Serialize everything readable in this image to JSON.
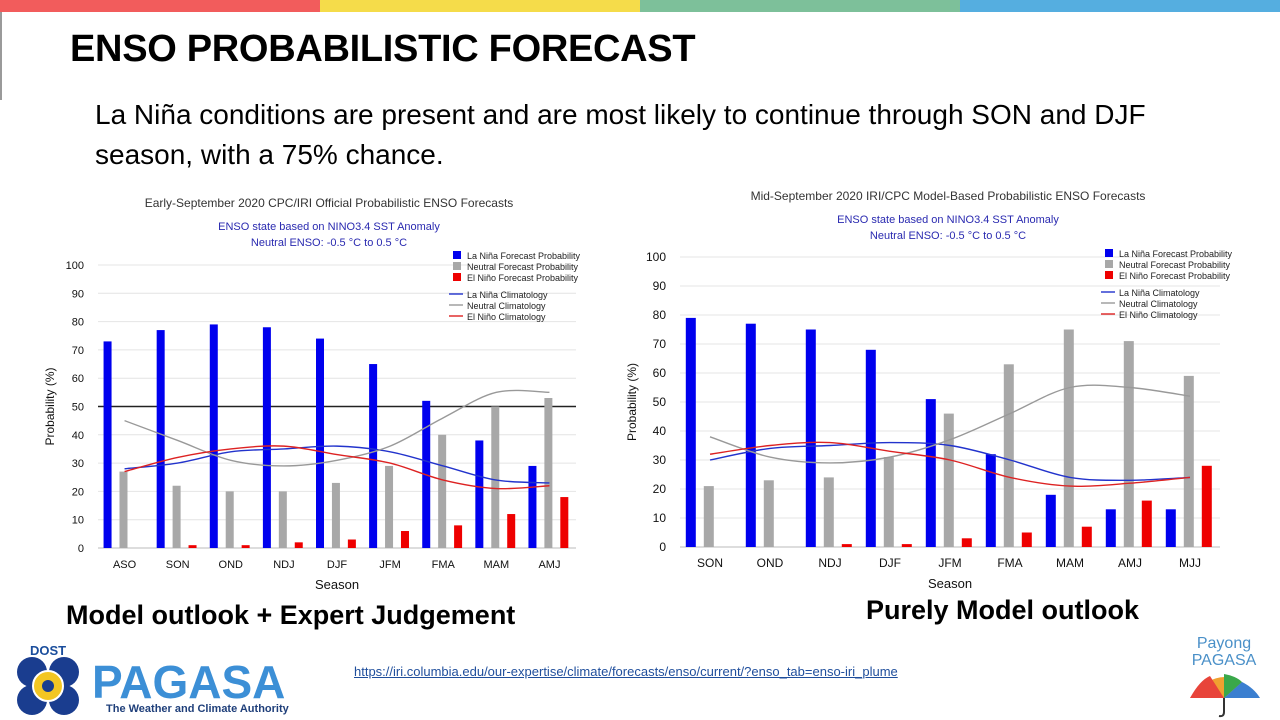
{
  "slide": {
    "title": "ENSO PROBABILISTIC FORECAST",
    "intro": "La Niña conditions are present and are most likely to continue through SON and DJF season, with a 75% chance.",
    "caption_left": "Model outlook + Expert Judgement",
    "caption_right": "Purely Model outlook",
    "source_link": "https://iri.columbia.edu/our-expertise/climate/forecasts/enso/current/?enso_tab=enso-iri_plume",
    "logo_left": {
      "top_text": "DOST",
      "name": "PAGASA",
      "tagline": "The Weather and Climate Authority"
    },
    "logo_right": {
      "line1": "Payong",
      "line2": "PAGASA"
    },
    "colors": {
      "bar_red": "#f25c5c",
      "bar_yellow": "#f5dc4a",
      "bar_green": "#7dc09a",
      "bar_blue": "#55aee0"
    }
  },
  "chart_data": [
    {
      "type": "bar",
      "title": "Early-September 2020 CPC/IRI Official Probabilistic ENSO Forecasts",
      "subtitle": [
        "ENSO state based on NINO3.4 SST Anomaly",
        "Neutral ENSO: -0.5 °C to 0.5 °C"
      ],
      "xlabel": "Season",
      "ylabel": "Probability (%)",
      "ylim": [
        0,
        100
      ],
      "yticks": [
        0,
        10,
        20,
        30,
        40,
        50,
        60,
        70,
        80,
        90,
        100
      ],
      "reference_line": 50,
      "grid": true,
      "legend_placement": "top-right",
      "categories": [
        "ASO",
        "SON",
        "OND",
        "NDJ",
        "DJF",
        "JFM",
        "FMA",
        "MAM",
        "AMJ"
      ],
      "series": [
        {
          "name": "La Niña Forecast Probability",
          "kind": "bar",
          "color": "#0000ee",
          "values": [
            73,
            77,
            79,
            78,
            74,
            65,
            52,
            38,
            29
          ]
        },
        {
          "name": "Neutral Forecast Probability",
          "kind": "bar",
          "color": "#a8a8a8",
          "values": [
            27,
            22,
            20,
            20,
            23,
            29,
            40,
            50,
            53
          ]
        },
        {
          "name": "El Niño Forecast Probability",
          "kind": "bar",
          "color": "#ee0000",
          "values": [
            0,
            1,
            1,
            2,
            3,
            6,
            8,
            12,
            18
          ]
        },
        {
          "name": "La Niña Climatology",
          "kind": "line",
          "color": "#2233cc",
          "values": [
            28,
            30,
            34,
            35,
            36,
            34,
            29,
            24,
            23
          ]
        },
        {
          "name": "Neutral Climatology",
          "kind": "line",
          "color": "#999999",
          "values": [
            45,
            38,
            31,
            29,
            31,
            36,
            46,
            55,
            55
          ]
        },
        {
          "name": "El Niño Climatology",
          "kind": "line",
          "color": "#dd2222",
          "values": [
            27,
            32,
            35,
            36,
            33,
            30,
            24,
            21,
            22
          ]
        }
      ]
    },
    {
      "type": "bar",
      "title": "Mid-September 2020 IRI/CPC Model-Based Probabilistic ENSO Forecasts",
      "subtitle": [
        "ENSO state based on NINO3.4 SST Anomaly",
        "Neutral ENSO: -0.5 °C to 0.5 °C"
      ],
      "xlabel": "Season",
      "ylabel": "Probability (%)",
      "ylim": [
        0,
        100
      ],
      "yticks": [
        0,
        10,
        20,
        30,
        40,
        50,
        60,
        70,
        80,
        90,
        100
      ],
      "grid": true,
      "legend_placement": "top-right",
      "categories": [
        "SON",
        "OND",
        "NDJ",
        "DJF",
        "JFM",
        "FMA",
        "MAM",
        "AMJ",
        "MJJ"
      ],
      "series": [
        {
          "name": "La Niña Forecast Probability",
          "kind": "bar",
          "color": "#0000ee",
          "values": [
            79,
            77,
            75,
            68,
            51,
            32,
            18,
            13,
            13
          ]
        },
        {
          "name": "Neutral Forecast Probability",
          "kind": "bar",
          "color": "#a8a8a8",
          "values": [
            21,
            23,
            24,
            31,
            46,
            63,
            75,
            71,
            59
          ]
        },
        {
          "name": "El Niño Forecast Probability",
          "kind": "bar",
          "color": "#ee0000",
          "values": [
            0,
            0,
            1,
            1,
            3,
            5,
            7,
            16,
            28
          ]
        },
        {
          "name": "La Niña Climatology",
          "kind": "line",
          "color": "#2233cc",
          "values": [
            30,
            34,
            35,
            36,
            35,
            30,
            24,
            23,
            24
          ]
        },
        {
          "name": "Neutral Climatology",
          "kind": "line",
          "color": "#999999",
          "values": [
            38,
            31,
            29,
            31,
            37,
            46,
            55,
            55,
            52
          ]
        },
        {
          "name": "El Niño Climatology",
          "kind": "line",
          "color": "#dd2222",
          "values": [
            32,
            35,
            36,
            33,
            30,
            24,
            21,
            22,
            24
          ]
        }
      ]
    }
  ]
}
